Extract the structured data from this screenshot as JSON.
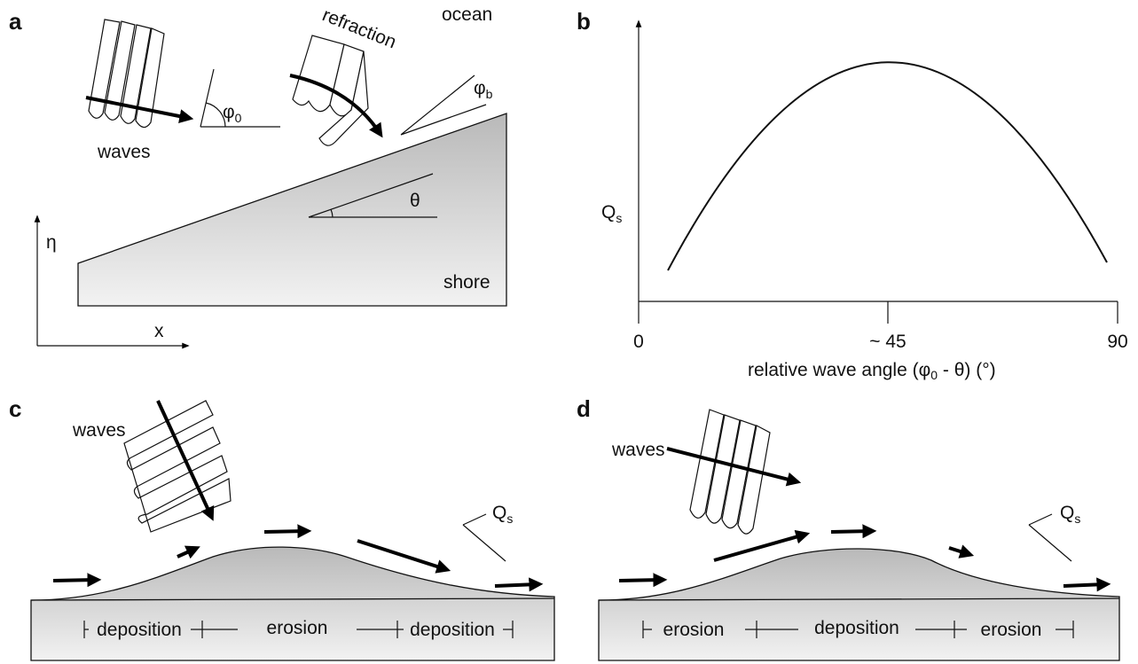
{
  "panel_a": {
    "label": "a",
    "waves": "waves",
    "refraction": "refraction",
    "ocean": "ocean",
    "phi0": {
      "symbol": "φ",
      "subscript": "0"
    },
    "phib": {
      "symbol": "φ",
      "subscript": "b"
    },
    "theta": "θ",
    "eta": "η",
    "x": "x",
    "shore": "shore"
  },
  "panel_b": {
    "label": "b",
    "qs": {
      "symbol": "Q",
      "subscript": "s"
    },
    "ticks": [
      "0",
      "~ 45",
      "90"
    ],
    "x_label": {
      "before": "relative wave angle (",
      "symbol": "φ",
      "subscript": "0",
      "after": " - θ) (°)"
    }
  },
  "panel_c": {
    "label": "c",
    "waves": "waves",
    "qs": {
      "symbol": "Q",
      "subscript": "s"
    },
    "zones": [
      "deposition",
      "erosion",
      "deposition"
    ]
  },
  "panel_d": {
    "label": "d",
    "waves": "waves",
    "qs": {
      "symbol": "Q",
      "subscript": "s"
    },
    "zones": [
      "erosion",
      "deposition",
      "erosion"
    ]
  }
}
